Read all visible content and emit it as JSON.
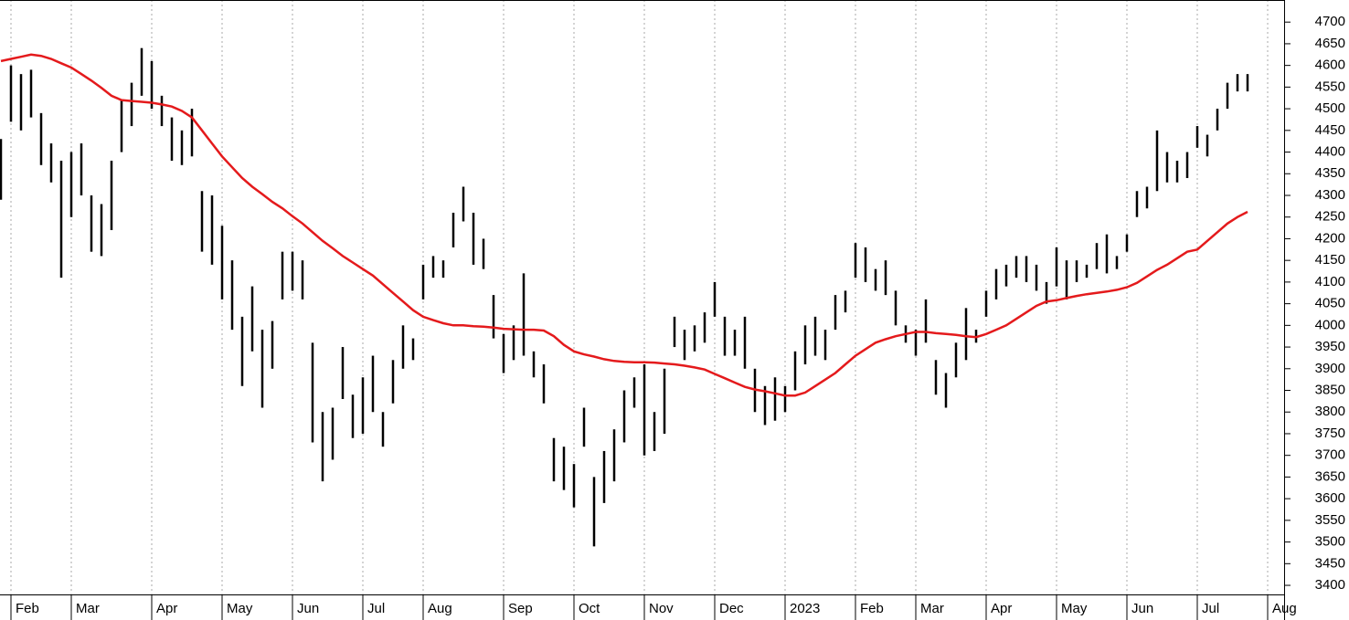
{
  "chart_data": {
    "type": "ohlc",
    "color": "#000000",
    "grid": true,
    "categories": [
      null,
      "Feb",
      null,
      null,
      null,
      null,
      null,
      "Mar",
      null,
      null,
      null,
      null,
      null,
      null,
      null,
      "Apr",
      null,
      null,
      null,
      null,
      null,
      null,
      "May",
      null,
      null,
      null,
      null,
      null,
      null,
      "Jun",
      null,
      null,
      null,
      null,
      null,
      null,
      "Jul",
      null,
      null,
      null,
      null,
      null,
      "Aug",
      null,
      null,
      null,
      null,
      null,
      null,
      null,
      "Sep",
      null,
      null,
      null,
      null,
      null,
      null,
      "Oct",
      null,
      null,
      null,
      null,
      null,
      null,
      "Nov",
      null,
      null,
      null,
      null,
      null,
      null,
      "Dec",
      null,
      null,
      null,
      null,
      null,
      null,
      "2023",
      null,
      null,
      null,
      null,
      null,
      null,
      "Feb",
      null,
      null,
      null,
      null,
      null,
      "Mar",
      null,
      null,
      null,
      null,
      null,
      null,
      "Apr",
      null,
      null,
      null,
      null,
      null,
      null,
      "May",
      null,
      null,
      null,
      null,
      null,
      null,
      "Jun",
      null,
      null,
      null,
      null,
      null,
      null,
      "Jul",
      null,
      null,
      null,
      null,
      null,
      null,
      "Aug"
    ],
    "high": [
      4430,
      4600,
      4580,
      4590,
      4490,
      4420,
      4380,
      4400,
      4420,
      4300,
      4280,
      4380,
      4520,
      4560,
      4640,
      4610,
      4530,
      4480,
      4450,
      4500,
      4310,
      4300,
      4230,
      4150,
      4020,
      4090,
      3990,
      4010,
      4170,
      4170,
      4150,
      3960,
      3800,
      3810,
      3950,
      3840,
      3880,
      3930,
      3800,
      3920,
      4000,
      3970,
      4140,
      4160,
      4150,
      4260,
      4320,
      4260,
      4200,
      4070,
      3980,
      4000,
      4120,
      3940,
      3910,
      3740,
      3720,
      3680,
      3810,
      3650,
      3710,
      3760,
      3850,
      3880,
      3910,
      3800,
      3900,
      4020,
      3990,
      4000,
      4030,
      4100,
      4020,
      3990,
      4020,
      3900,
      3860,
      3880,
      3860,
      3940,
      4000,
      4020,
      3990,
      4070,
      4080,
      4190,
      4180,
      4130,
      4150,
      4080,
      4000,
      3990,
      4060,
      3920,
      3890,
      3960,
      4040,
      3990,
      4080,
      4130,
      4140,
      4160,
      4160,
      4140,
      4100,
      4180,
      4150,
      4150,
      4140,
      4190,
      4210,
      4160,
      4210,
      4310,
      4320,
      4450,
      4400,
      4380,
      4400,
      4460,
      4440,
      4500,
      4560,
      4580,
      4580,
      null,
      null
    ],
    "low": [
      4290,
      4470,
      4450,
      4480,
      4370,
      4330,
      4110,
      4250,
      4300,
      4170,
      4160,
      4220,
      4400,
      4460,
      4530,
      4500,
      4460,
      4380,
      4370,
      4390,
      4170,
      4140,
      4060,
      3990,
      3860,
      3940,
      3810,
      3900,
      4060,
      4080,
      4060,
      3730,
      3640,
      3690,
      3830,
      3740,
      3750,
      3800,
      3720,
      3820,
      3900,
      3920,
      4060,
      4110,
      4110,
      4180,
      4240,
      4140,
      4130,
      3970,
      3890,
      3920,
      3930,
      3880,
      3820,
      3640,
      3620,
      3580,
      3720,
      3490,
      3590,
      3640,
      3730,
      3810,
      3700,
      3710,
      3750,
      3950,
      3920,
      3940,
      3960,
      4020,
      3930,
      3930,
      3900,
      3800,
      3770,
      3780,
      3800,
      3850,
      3910,
      3930,
      3920,
      3990,
      4030,
      4110,
      4100,
      4080,
      4070,
      4000,
      3960,
      3930,
      3960,
      3840,
      3810,
      3880,
      3920,
      3960,
      4020,
      4060,
      4090,
      4110,
      4100,
      4080,
      4050,
      4090,
      4060,
      4100,
      4110,
      4130,
      4120,
      4130,
      4170,
      4250,
      4270,
      4310,
      4330,
      4330,
      4340,
      4410,
      4390,
      4450,
      4500,
      4540,
      4540,
      null,
      null
    ],
    "moving_average": {
      "color": "#e41a1c",
      "values": [
        4610,
        4615,
        4620,
        4625,
        4622,
        4615,
        4605,
        4595,
        4580,
        4565,
        4548,
        4530,
        4520,
        4518,
        4516,
        4514,
        4510,
        4505,
        4495,
        4480,
        4450,
        4420,
        4390,
        4365,
        4340,
        4320,
        4303,
        4285,
        4270,
        4252,
        4235,
        4215,
        4195,
        4178,
        4160,
        4145,
        4130,
        4115,
        4095,
        4075,
        4055,
        4035,
        4020,
        4012,
        4005,
        4000,
        4000,
        3998,
        3997,
        3995,
        3992,
        3991,
        3990,
        3990,
        3988,
        3975,
        3955,
        3940,
        3933,
        3928,
        3922,
        3918,
        3916,
        3915,
        3915,
        3914,
        3912,
        3910,
        3907,
        3903,
        3898,
        3888,
        3878,
        3868,
        3858,
        3852,
        3848,
        3843,
        3838,
        3838,
        3845,
        3860,
        3875,
        3890,
        3910,
        3930,
        3945,
        3960,
        3968,
        3975,
        3980,
        3985,
        3985,
        3982,
        3980,
        3978,
        3975,
        3973,
        3980,
        3990,
        4000,
        4015,
        4030,
        4045,
        4055,
        4058,
        4063,
        4068,
        4072,
        4075,
        4078,
        4082,
        4088,
        4098,
        4113,
        4128,
        4140,
        4155,
        4170,
        4175,
        4195,
        4215,
        4235,
        4250,
        4262,
        null,
        null
      ]
    },
    "ylim": [
      3379,
      4751
    ],
    "yticks": [
      3400,
      3450,
      3500,
      3550,
      3600,
      3650,
      3700,
      3750,
      3800,
      3850,
      3900,
      3950,
      4000,
      4050,
      4100,
      4150,
      4200,
      4250,
      4300,
      4350,
      4400,
      4450,
      4500,
      4550,
      4600,
      4650,
      4700
    ]
  }
}
